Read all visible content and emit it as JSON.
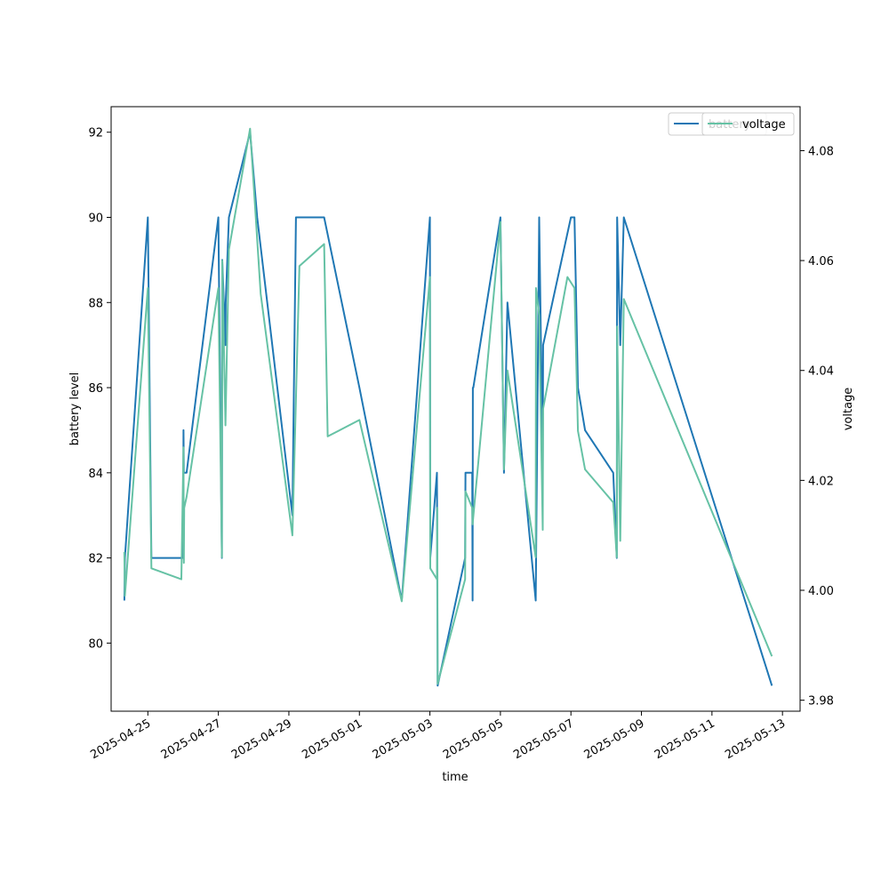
{
  "chart_data": {
    "type": "line",
    "xlabel": "time",
    "ylabel": "battery level",
    "y2label": "voltage",
    "xlim": [
      "2025-04-23T23:00:00",
      "2025-05-13T12:00:00"
    ],
    "ylim": [
      78.4,
      92.6
    ],
    "y2lim": [
      3.978,
      4.088
    ],
    "x_ticks": [
      "2025-04-25",
      "2025-04-27",
      "2025-04-29",
      "2025-05-01",
      "2025-05-03",
      "2025-05-05",
      "2025-05-07",
      "2025-05-09",
      "2025-05-11",
      "2025-05-13"
    ],
    "y_ticks": [
      80,
      82,
      84,
      86,
      88,
      90,
      92
    ],
    "y2_ticks": [
      3.98,
      4.0,
      4.02,
      4.04,
      4.06,
      4.08
    ],
    "y2_tick_labels": [
      "3.98",
      "4.00",
      "4.02",
      "4.04",
      "4.06",
      "4.08"
    ],
    "grid": false,
    "legend_placement": "top-right",
    "series": [
      {
        "name": "battery",
        "axis": "left",
        "color": "#1f77b4",
        "points": [
          [
            "2025-04-24T08:00",
            81
          ],
          [
            "2025-04-24T08:24",
            82
          ],
          [
            "2025-04-25T00:00",
            90
          ],
          [
            "2025-04-25T02:24",
            82
          ],
          [
            "2025-04-25T19:12",
            82
          ],
          [
            "2025-04-26T00:00",
            82
          ],
          [
            "2025-04-26T00:14",
            85
          ],
          [
            "2025-04-26T00:29",
            84
          ],
          [
            "2025-04-26T02:24",
            84
          ],
          [
            "2025-04-27T00:00",
            90
          ],
          [
            "2025-04-27T02:24",
            82
          ],
          [
            "2025-04-27T02:38",
            89
          ],
          [
            "2025-04-27T04:48",
            87
          ],
          [
            "2025-04-27T05:02",
            88
          ],
          [
            "2025-04-27T07:12",
            90
          ],
          [
            "2025-04-27T21:36",
            92
          ],
          [
            "2025-04-28T02:24",
            90
          ],
          [
            "2025-04-29T02:24",
            83
          ],
          [
            "2025-04-29T04:48",
            90
          ],
          [
            "2025-04-30T00:00",
            90
          ],
          [
            "2025-05-01T00:00",
            86
          ],
          [
            "2025-05-02T04:48",
            81
          ],
          [
            "2025-05-03T00:00",
            90
          ],
          [
            "2025-05-03T00:14",
            82
          ],
          [
            "2025-05-03T04:48",
            84
          ],
          [
            "2025-05-03T05:16",
            79
          ],
          [
            "2025-05-04T00:00",
            82
          ],
          [
            "2025-05-04T00:14",
            84
          ],
          [
            "2025-05-04T04:48",
            84
          ],
          [
            "2025-05-04T05:02",
            81
          ],
          [
            "2025-05-04T05:16",
            86
          ],
          [
            "2025-05-04T05:31",
            86
          ],
          [
            "2025-05-05T00:00",
            90
          ],
          [
            "2025-05-05T02:24",
            84
          ],
          [
            "2025-05-05T04:48",
            88
          ],
          [
            "2025-05-06T00:00",
            81
          ],
          [
            "2025-05-06T02:24",
            90
          ],
          [
            "2025-05-06T04:48",
            84
          ],
          [
            "2025-05-06T05:02",
            87
          ],
          [
            "2025-05-07T00:00",
            90
          ],
          [
            "2025-05-07T02:24",
            90
          ],
          [
            "2025-05-07T04:48",
            86
          ],
          [
            "2025-05-07T09:36",
            85
          ],
          [
            "2025-05-08T04:48",
            84
          ],
          [
            "2025-05-08T07:12",
            82
          ],
          [
            "2025-05-08T07:26",
            90
          ],
          [
            "2025-05-08T09:36",
            87
          ],
          [
            "2025-05-08T12:00",
            90
          ],
          [
            "2025-05-12T16:48",
            79
          ]
        ]
      },
      {
        "name": "voltage",
        "axis": "right",
        "color": "#66c2a5",
        "points": [
          [
            "2025-04-24T08:00",
            4.007
          ],
          [
            "2025-04-24T08:24",
            3.999
          ],
          [
            "2025-04-25T00:00",
            4.055
          ],
          [
            "2025-04-25T02:24",
            4.004
          ],
          [
            "2025-04-25T22:48",
            4.002
          ],
          [
            "2025-04-26T00:14",
            4.026
          ],
          [
            "2025-04-26T00:29",
            4.005
          ],
          [
            "2025-04-26T00:43",
            4.015
          ],
          [
            "2025-04-26T02:24",
            4.017
          ],
          [
            "2025-04-27T00:00",
            4.055
          ],
          [
            "2025-04-27T02:24",
            4.006
          ],
          [
            "2025-04-27T02:38",
            4.06
          ],
          [
            "2025-04-27T04:48",
            4.03
          ],
          [
            "2025-04-27T07:12",
            4.062
          ],
          [
            "2025-04-27T21:36",
            4.084
          ],
          [
            "2025-04-28T04:48",
            4.054
          ],
          [
            "2025-04-29T02:24",
            4.01
          ],
          [
            "2025-04-29T07:12",
            4.059
          ],
          [
            "2025-04-30T00:00",
            4.063
          ],
          [
            "2025-04-30T02:24",
            4.028
          ],
          [
            "2025-05-01T00:00",
            4.031
          ],
          [
            "2025-05-02T04:48",
            3.998
          ],
          [
            "2025-05-03T00:00",
            4.057
          ],
          [
            "2025-05-03T00:14",
            4.004
          ],
          [
            "2025-05-03T04:48",
            4.002
          ],
          [
            "2025-05-03T05:02",
            4.015
          ],
          [
            "2025-05-03T05:16",
            3.983
          ],
          [
            "2025-05-04T00:00",
            4.002
          ],
          [
            "2025-05-04T00:14",
            4.018
          ],
          [
            "2025-05-04T04:48",
            4.015
          ],
          [
            "2025-05-04T05:02",
            4.012
          ],
          [
            "2025-05-05T00:00",
            4.067
          ],
          [
            "2025-05-05T02:24",
            4.022
          ],
          [
            "2025-05-05T04:48",
            4.04
          ],
          [
            "2025-05-06T00:00",
            4.006
          ],
          [
            "2025-05-06T00:14",
            4.055
          ],
          [
            "2025-05-06T02:24",
            4.05
          ],
          [
            "2025-05-06T04:48",
            4.011
          ],
          [
            "2025-05-06T05:02",
            4.033
          ],
          [
            "2025-05-06T21:36",
            4.057
          ],
          [
            "2025-05-07T02:24",
            4.055
          ],
          [
            "2025-05-07T04:48",
            4.029
          ],
          [
            "2025-05-07T09:36",
            4.022
          ],
          [
            "2025-05-08T04:48",
            4.016
          ],
          [
            "2025-05-08T07:12",
            4.006
          ],
          [
            "2025-05-08T07:26",
            4.048
          ],
          [
            "2025-05-08T09:36",
            4.009
          ],
          [
            "2025-05-08T12:00",
            4.053
          ],
          [
            "2025-05-12T16:48",
            3.988
          ]
        ]
      }
    ]
  }
}
